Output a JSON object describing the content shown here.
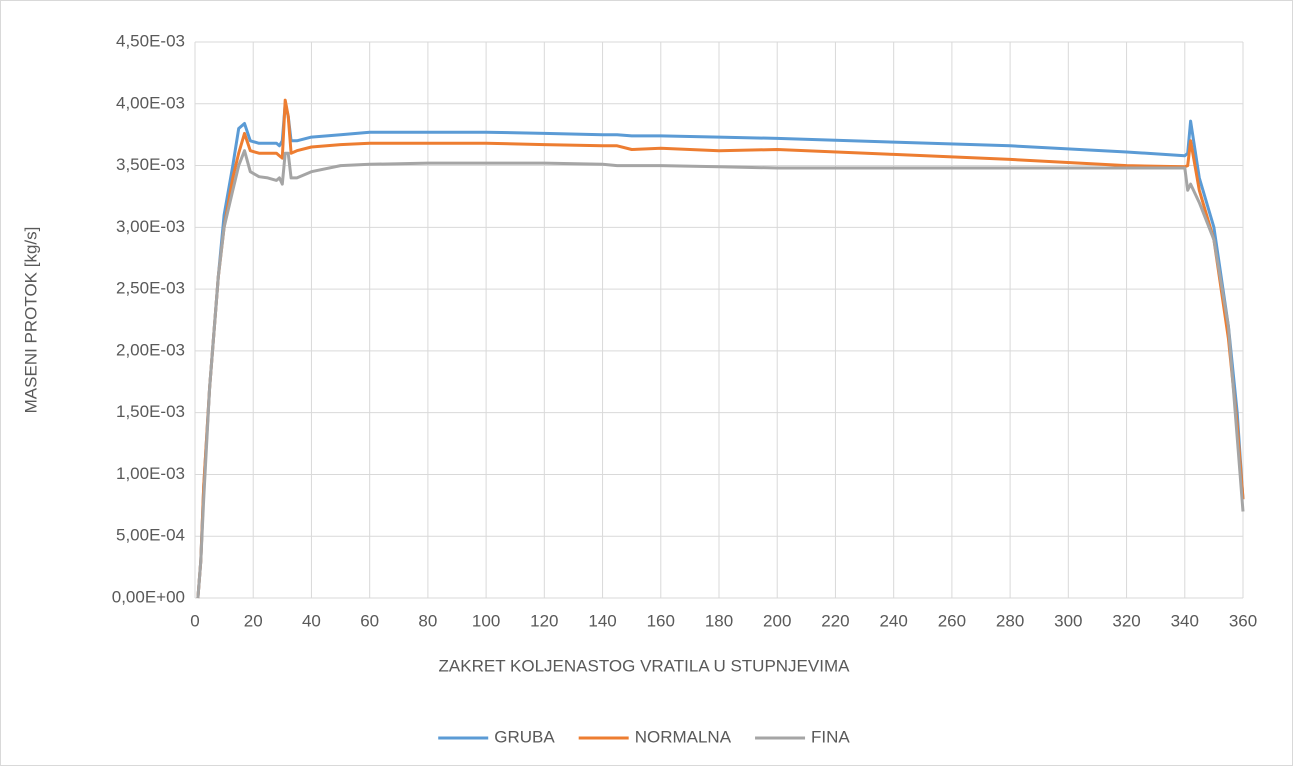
{
  "chart_data": {
    "type": "line",
    "x_label": "ZAKRET KOLJENASTOG VRATILA U STUPNJEVIMA",
    "y_label": "MASENI PROTOK [kg/s]",
    "x": [
      1,
      2,
      3,
      5,
      8,
      10,
      13,
      15,
      17,
      19,
      22,
      25,
      28,
      29,
      30,
      31,
      32,
      33,
      35,
      40,
      50,
      60,
      80,
      100,
      120,
      140,
      145,
      150,
      160,
      180,
      200,
      240,
      280,
      320,
      340,
      341,
      342,
      345,
      350,
      355,
      358,
      360
    ],
    "series": [
      {
        "name": "GRUBA",
        "color": "#5b9bd5",
        "values": [
          0,
          0.0003,
          0.0009,
          0.0017,
          0.0026,
          0.0031,
          0.0035,
          0.0038,
          0.00384,
          0.0037,
          0.00368,
          0.00368,
          0.00368,
          0.00366,
          0.0037,
          0.004,
          0.0039,
          0.0037,
          0.0037,
          0.00373,
          0.00375,
          0.00377,
          0.00377,
          0.00377,
          0.00376,
          0.00375,
          0.00375,
          0.00374,
          0.00374,
          0.00373,
          0.00372,
          0.00369,
          0.00366,
          0.00361,
          0.00358,
          0.0036,
          0.00386,
          0.0034,
          0.003,
          0.0022,
          0.0015,
          0.0008
        ]
      },
      {
        "name": "NORMALNA",
        "color": "#ed7d31",
        "values": [
          0,
          0.0003,
          0.0009,
          0.0017,
          0.0026,
          0.003,
          0.0034,
          0.0036,
          0.00376,
          0.00362,
          0.0036,
          0.0036,
          0.0036,
          0.00358,
          0.00356,
          0.00403,
          0.0039,
          0.0036,
          0.00362,
          0.00365,
          0.00367,
          0.00368,
          0.00368,
          0.00368,
          0.00367,
          0.00366,
          0.00366,
          0.00363,
          0.00364,
          0.00362,
          0.00363,
          0.00359,
          0.00355,
          0.0035,
          0.00349,
          0.0035,
          0.0037,
          0.0033,
          0.0029,
          0.0021,
          0.0014,
          0.0008
        ]
      },
      {
        "name": "FINA",
        "color": "#a5a5a5",
        "values": [
          0,
          0.0003,
          0.0008,
          0.0017,
          0.0026,
          0.003,
          0.0033,
          0.0035,
          0.00362,
          0.00345,
          0.00341,
          0.0034,
          0.00338,
          0.0034,
          0.00335,
          0.0036,
          0.0036,
          0.0034,
          0.0034,
          0.00345,
          0.0035,
          0.00351,
          0.00352,
          0.00352,
          0.00352,
          0.00351,
          0.0035,
          0.0035,
          0.0035,
          0.00349,
          0.00348,
          0.00348,
          0.00348,
          0.00348,
          0.00348,
          0.0033,
          0.00335,
          0.0032,
          0.0029,
          0.0022,
          0.0013,
          0.0007
        ]
      }
    ],
    "xlim": [
      0,
      360
    ],
    "xticks": [
      0,
      20,
      40,
      60,
      80,
      100,
      120,
      140,
      160,
      180,
      200,
      220,
      240,
      260,
      280,
      300,
      320,
      340,
      360
    ],
    "ylim": [
      0,
      0.0045
    ],
    "yticks": [
      {
        "value": 0,
        "label": "0,00E+00"
      },
      {
        "value": 0.0005,
        "label": "5,00E-04"
      },
      {
        "value": 0.001,
        "label": "1,00E-03"
      },
      {
        "value": 0.0015,
        "label": "1,50E-03"
      },
      {
        "value": 0.002,
        "label": "2,00E-03"
      },
      {
        "value": 0.0025,
        "label": "2,50E-03"
      },
      {
        "value": 0.003,
        "label": "3,00E-03"
      },
      {
        "value": 0.0035,
        "label": "3,50E-03"
      },
      {
        "value": 0.004,
        "label": "4,00E-03"
      },
      {
        "value": 0.0045,
        "label": "4,50E-03"
      }
    ],
    "grid": true,
    "legend": "bottom"
  }
}
